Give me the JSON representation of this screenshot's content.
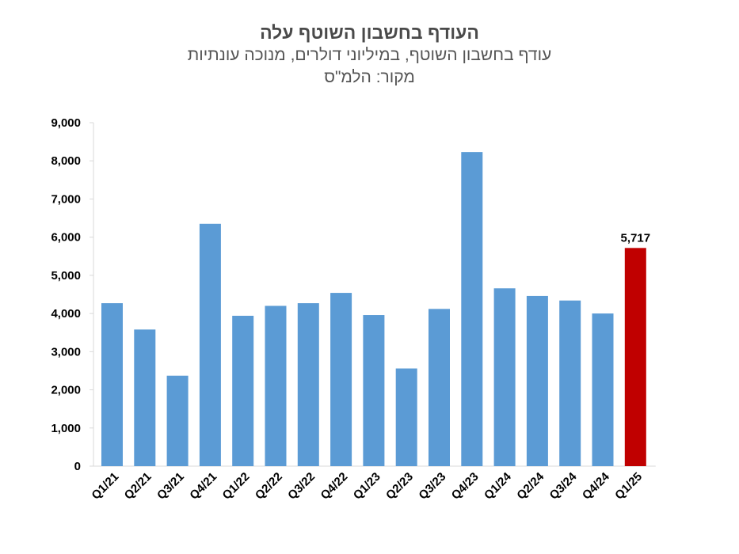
{
  "chart_data": {
    "type": "bar",
    "title": "העודף בחשבון השוטף עלה",
    "subtitle": "עודף בחשבון השוטף, במיליוני דולרים, מנוכה עונתיות",
    "source": "מקור: הלמ\"ס",
    "categories": [
      "Q1/21",
      "Q2/21",
      "Q3/21",
      "Q4/21",
      "Q1/22",
      "Q2/22",
      "Q3/22",
      "Q4/22",
      "Q1/23",
      "Q2/23",
      "Q3/23",
      "Q4/23",
      "Q1/24",
      "Q2/24",
      "Q3/24",
      "Q4/24",
      "Q1/25"
    ],
    "values": [
      4270,
      3580,
      2370,
      6350,
      3940,
      4200,
      4270,
      4540,
      3960,
      2560,
      4120,
      8230,
      4660,
      4460,
      4340,
      4000,
      5717
    ],
    "ylim": [
      0,
      9000
    ],
    "yticks": [
      0,
      1000,
      2000,
      3000,
      4000,
      5000,
      6000,
      7000,
      8000,
      9000
    ],
    "ytick_labels": [
      "0",
      "1,000",
      "2,000",
      "3,000",
      "4,000",
      "5,000",
      "6,000",
      "7,000",
      "8,000",
      "9,000"
    ],
    "grid": false,
    "colors": {
      "default": "#5b9bd5",
      "highlight": "#c00000"
    },
    "highlight_index": 16,
    "data_labels": [
      {
        "index": 16,
        "text": "5,717"
      }
    ]
  }
}
